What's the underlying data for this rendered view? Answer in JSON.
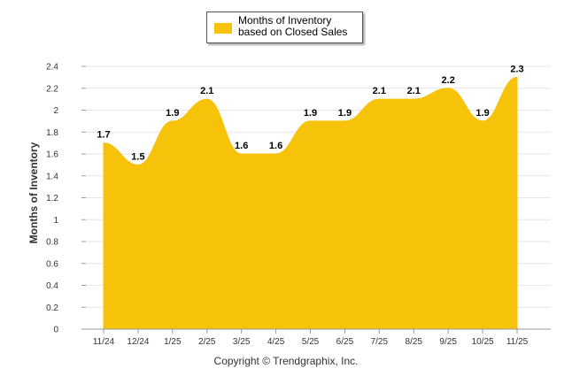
{
  "chart_data": {
    "type": "area",
    "title": "",
    "xlabel": "",
    "ylabel": "Months of Inventory",
    "categories": [
      "11/24",
      "12/24",
      "1/25",
      "2/25",
      "3/25",
      "4/25",
      "5/25",
      "6/25",
      "7/25",
      "8/25",
      "9/25",
      "10/25",
      "11/25"
    ],
    "series": [
      {
        "name": "Months of Inventory based on Closed Sales",
        "values": [
          1.7,
          1.5,
          1.9,
          2.1,
          1.6,
          1.6,
          1.9,
          1.9,
          2.1,
          2.1,
          2.2,
          1.9,
          2.3
        ],
        "color": "#F7C20A"
      }
    ],
    "ylim": [
      0,
      2.4
    ],
    "yticks": [
      "0",
      "0.2",
      "0.4",
      "0.6",
      "0.8",
      "1",
      "1.2",
      "1.4",
      "1.6",
      "1.8",
      "2",
      "2.2",
      "2.4"
    ],
    "grid": true,
    "legend_position": "top-center"
  },
  "footer": {
    "copyright": "Copyright © Trendgraphix, Inc."
  },
  "colors": {
    "area": "#F7C20A",
    "grid": "#e6e6e6",
    "axis": "#999999"
  }
}
